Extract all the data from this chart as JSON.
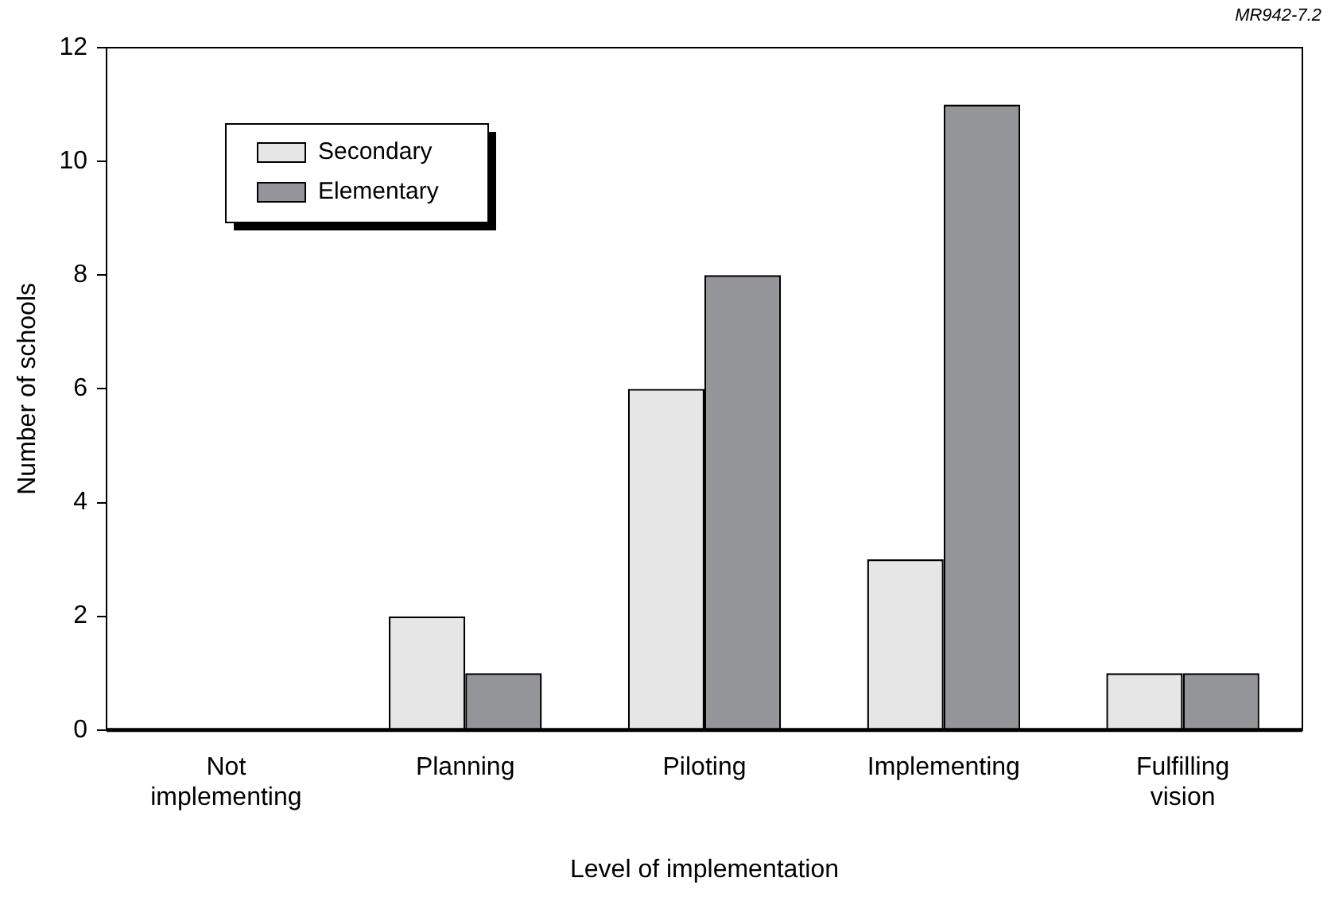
{
  "chart_data": {
    "type": "bar",
    "xlabel": "Level of implementation",
    "ylabel": "Number of schools",
    "categories": [
      "Not implementing",
      "Planning",
      "Piloting",
      "Implementing",
      "Fulfilling vision"
    ],
    "series": [
      {
        "name": "Secondary",
        "color": "#e6e6e6",
        "values": [
          0,
          2,
          6,
          3,
          1
        ]
      },
      {
        "name": "Elementary",
        "color": "#939598",
        "values": [
          0,
          1,
          8,
          11,
          1
        ]
      }
    ],
    "ylim": [
      0,
      12
    ],
    "yticks": [
      0,
      2,
      4,
      6,
      8,
      10,
      12
    ],
    "grid": false,
    "legend": "top left",
    "annotations": [
      "MR942-7.2"
    ]
  }
}
